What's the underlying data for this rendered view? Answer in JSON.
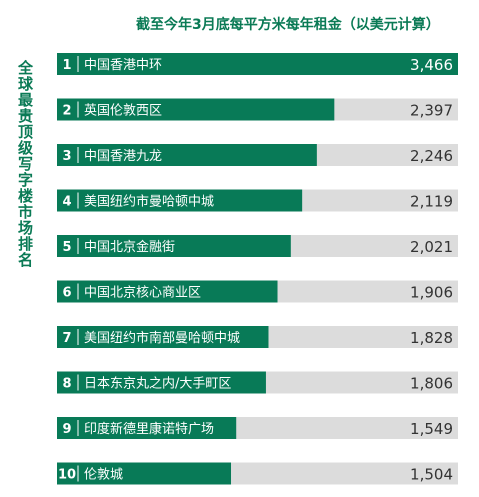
{
  "title": "截至今年3月底每平方米每年租金（以美元计算）",
  "side_title": "全球最贵顶级写字楼市场排名",
  "colors": {
    "bar": "#087a57",
    "track": "#dcdcdc",
    "text_dark": "#333333",
    "accent": "#0a7a55"
  },
  "chart_data": {
    "type": "bar",
    "orientation": "horizontal",
    "title": "截至今年3月底每平方米每年租金（以美元计算）",
    "ylabel": "全球最贵顶级写字楼市场排名",
    "ranks": [
      "1",
      "2",
      "3",
      "4",
      "5",
      "6",
      "7",
      "8",
      "9",
      "10"
    ],
    "categories": [
      "中国香港中环",
      "英国伦敦西区",
      "中国香港九龙",
      "美国纽约市曼哈顿中城",
      "中国北京金融街",
      "中国北京核心商业区",
      "美国纽约市南部曼哈顿中城",
      "日本东京丸之内/大手町区",
      "印度新德里康诺特广场",
      "伦敦城"
    ],
    "values": [
      3466,
      2397,
      2246,
      2119,
      2021,
      1906,
      1828,
      1806,
      1549,
      1504
    ],
    "value_labels": [
      "3,466",
      "2,397",
      "2,246",
      "2,119",
      "2,021",
      "1,906",
      "1,828",
      "1,806",
      "1,549",
      "1,504"
    ],
    "xlim": [
      0,
      3466
    ]
  }
}
